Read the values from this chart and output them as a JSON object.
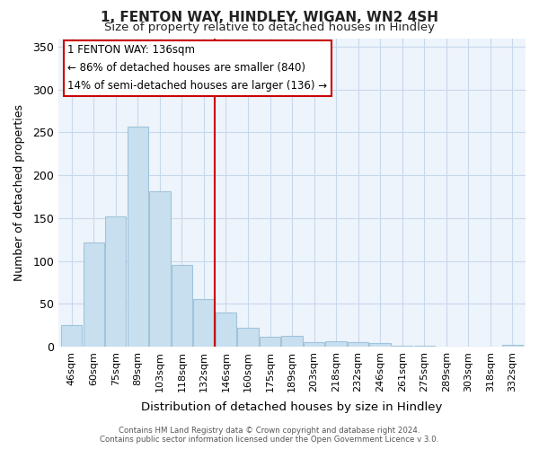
{
  "title": "1, FENTON WAY, HINDLEY, WIGAN, WN2 4SH",
  "subtitle": "Size of property relative to detached houses in Hindley",
  "xlabel": "Distribution of detached houses by size in Hindley",
  "ylabel": "Number of detached properties",
  "bar_color": "#c8dff0",
  "bar_edge_color": "#a0c4dc",
  "categories": [
    "46sqm",
    "60sqm",
    "75sqm",
    "89sqm",
    "103sqm",
    "118sqm",
    "132sqm",
    "146sqm",
    "160sqm",
    "175sqm",
    "189sqm",
    "203sqm",
    "218sqm",
    "232sqm",
    "246sqm",
    "261sqm",
    "275sqm",
    "289sqm",
    "303sqm",
    "318sqm",
    "332sqm"
  ],
  "values": [
    25,
    122,
    152,
    257,
    181,
    95,
    55,
    40,
    22,
    11,
    13,
    5,
    6,
    5,
    4,
    1,
    1,
    0,
    0,
    0,
    2
  ],
  "vline_x": 6.5,
  "vline_color": "#cc0000",
  "ylim": [
    0,
    360
  ],
  "yticks": [
    0,
    50,
    100,
    150,
    200,
    250,
    300,
    350
  ],
  "annotation_title": "1 FENTON WAY: 136sqm",
  "annotation_line1": "← 86% of detached houses are smaller (840)",
  "annotation_line2": "14% of semi-detached houses are larger (136) →",
  "footer1": "Contains HM Land Registry data © Crown copyright and database right 2024.",
  "footer2": "Contains public sector information licensed under the Open Government Licence v 3.0.",
  "background_color": "#ffffff",
  "plot_bg_color": "#eef4fb",
  "grid_color": "#c8d8ec"
}
